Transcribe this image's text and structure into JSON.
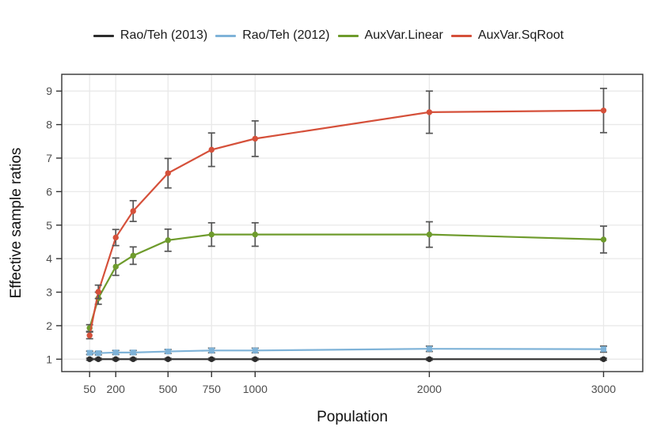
{
  "page": {
    "background": "#ffffff"
  },
  "chart_data": {
    "type": "line",
    "title": "",
    "xlabel": "Population",
    "ylabel": "Effective sample ratios",
    "x": [
      50,
      100,
      200,
      300,
      500,
      750,
      1000,
      2000,
      3000
    ],
    "xticks": [
      50,
      200,
      500,
      750,
      1000,
      2000,
      3000
    ],
    "yticks": [
      1,
      2,
      3,
      4,
      5,
      6,
      7,
      8,
      9
    ],
    "xlim": [
      -110,
      3225
    ],
    "ylim": [
      0.63,
      9.5
    ],
    "grid": true,
    "legend_position": "top",
    "errorbar_color": "#555555",
    "series": [
      {
        "name": "Rao/Teh (2013)",
        "color": "#2d2d2d",
        "marker": "circle",
        "values": [
          1.0,
          1.0,
          1.0,
          1.0,
          1.0,
          1.0,
          1.0,
          1.0,
          1.0
        ],
        "errors": [
          0.03,
          0.03,
          0.03,
          0.03,
          0.03,
          0.03,
          0.03,
          0.03,
          0.03
        ]
      },
      {
        "name": "Rao/Teh (2012)",
        "color": "#7fb3d8",
        "marker": "square",
        "values": [
          1.19,
          1.18,
          1.2,
          1.2,
          1.23,
          1.26,
          1.26,
          1.31,
          1.3
        ],
        "errors": [
          0.05,
          0.05,
          0.06,
          0.06,
          0.06,
          0.07,
          0.07,
          0.08,
          0.09
        ]
      },
      {
        "name": "AuxVar.Linear",
        "color": "#6e9b2c",
        "marker": "circle",
        "values": [
          1.93,
          2.82,
          3.76,
          4.09,
          4.55,
          4.72,
          4.72,
          4.72,
          4.57
        ],
        "errors": [
          0.1,
          0.18,
          0.26,
          0.26,
          0.33,
          0.35,
          0.35,
          0.38,
          0.4
        ]
      },
      {
        "name": "AuxVar.SqRoot",
        "color": "#d5503a",
        "marker": "circle",
        "values": [
          1.71,
          3.01,
          4.63,
          5.42,
          6.55,
          7.25,
          7.58,
          8.37,
          8.42
        ],
        "errors": [
          0.1,
          0.2,
          0.24,
          0.31,
          0.44,
          0.5,
          0.53,
          0.63,
          0.66
        ]
      }
    ]
  }
}
